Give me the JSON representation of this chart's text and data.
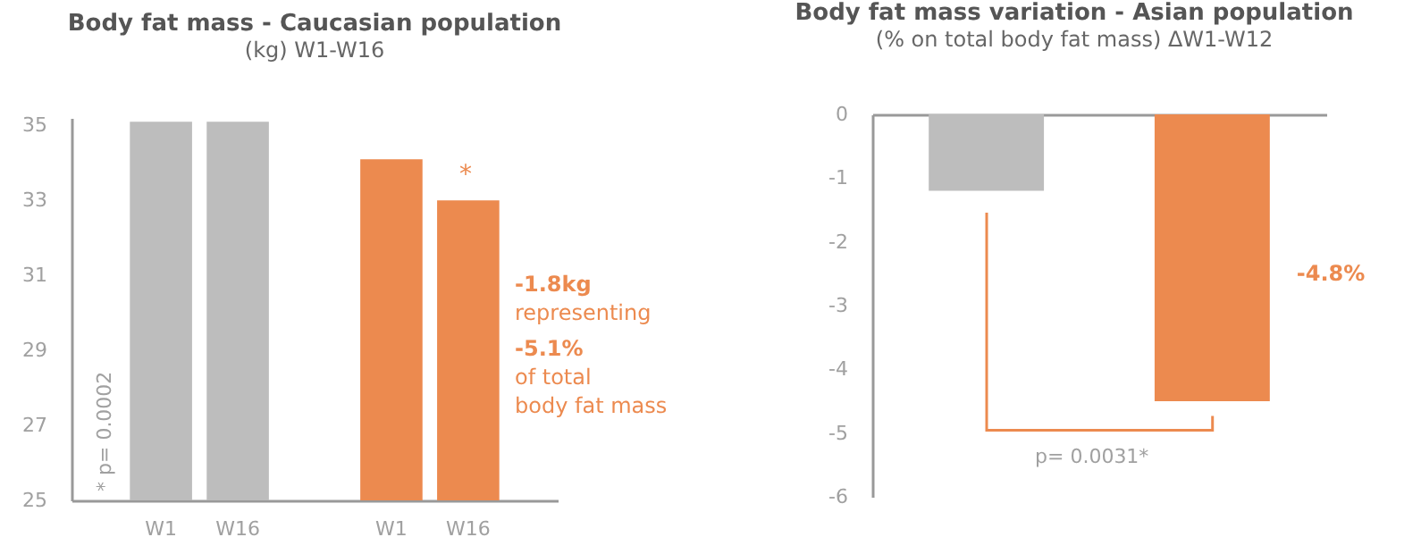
{
  "chart_data": [
    {
      "type": "bar",
      "title": "Body fat mass - Caucasian population",
      "subtitle": "(kg) W1-W16",
      "categories": [
        "W1",
        "W16",
        "W1",
        "W16"
      ],
      "series": [
        {
          "color": "#bdbdbd",
          "values": [
            35.1,
            35.1,
            null,
            null
          ]
        },
        {
          "color": "#ec8a4f",
          "values": [
            null,
            null,
            34.1,
            33.0
          ]
        }
      ],
      "ylim": [
        25,
        35.2
      ],
      "yticks": [
        25,
        27,
        29,
        31,
        33,
        35
      ],
      "grid": false,
      "annotations": [
        "*",
        "-1.8kg",
        "representing",
        "-5.1%",
        "of total",
        "body fat mass",
        "* p= 0.0002"
      ]
    },
    {
      "type": "bar",
      "title": "Body fat mass variation - Asian population",
      "subtitle": "(% on total body fat mass) ΔW1-W12",
      "categories": [
        null,
        null
      ],
      "values": [
        -1.2,
        -4.5
      ],
      "colors": [
        "#bdbdbd",
        "#ec8a4f"
      ],
      "ylim": [
        -6,
        0
      ],
      "yticks": [
        0,
        -1,
        -2,
        -3,
        -4,
        -5,
        -6
      ],
      "grid": false,
      "tick_labels": "y",
      "annotations": [
        "-4.8%",
        "p= 0.0031*"
      ]
    }
  ]
}
